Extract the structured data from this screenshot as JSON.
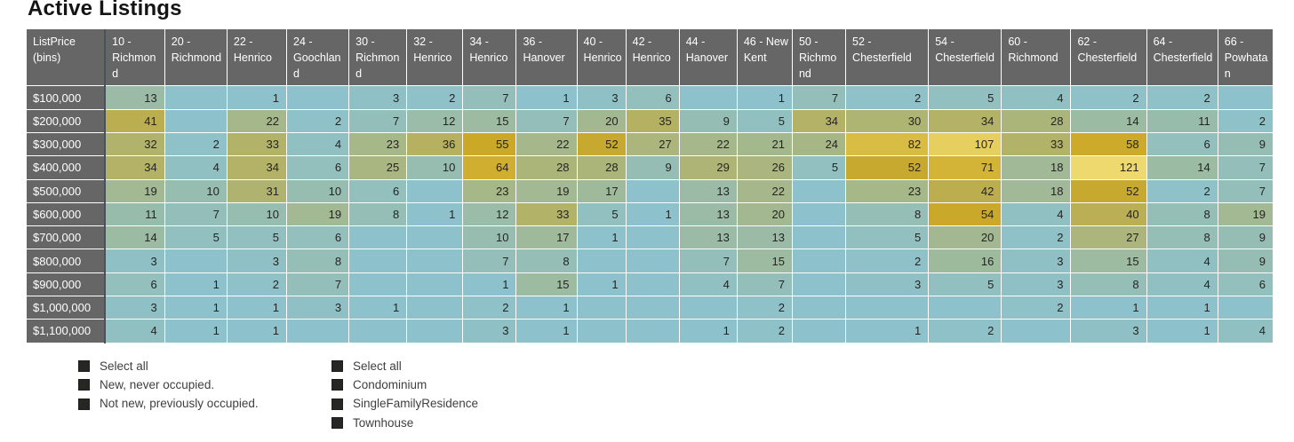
{
  "title": "Active Listings",
  "chart_data": {
    "type": "heatmap",
    "title": "Active Listings",
    "row_header": "ListPrice (bins)",
    "columns": [
      "10 - Richmond",
      "20 - Richmond",
      "22 - Henrico",
      "24 - Goochland",
      "30 - Richmond",
      "32 - Henrico",
      "34 - Henrico",
      "36 - Hanover",
      "40 - Henrico",
      "42 - Henrico",
      "44 - Hanover",
      "46 - New Kent",
      "50 - Richmond",
      "52 - Chesterfield",
      "54 - Chesterfield",
      "60 - Richmond",
      "62 - Chesterfield",
      "64 - Chesterfield",
      "66 - Powhatan"
    ],
    "rows": [
      "$100,000",
      "$200,000",
      "$300,000",
      "$400,000",
      "$500,000",
      "$600,000",
      "$700,000",
      "$800,000",
      "$900,000",
      "$1,000,000",
      "$1,100,000"
    ],
    "values": [
      [
        13,
        null,
        1,
        null,
        3,
        2,
        7,
        1,
        3,
        6,
        null,
        1,
        7,
        2,
        5,
        4,
        2,
        2,
        null
      ],
      [
        41,
        null,
        22,
        2,
        7,
        12,
        15,
        7,
        20,
        35,
        9,
        5,
        34,
        30,
        34,
        28,
        14,
        11,
        2
      ],
      [
        32,
        2,
        33,
        4,
        23,
        36,
        55,
        22,
        52,
        27,
        22,
        21,
        24,
        82,
        107,
        33,
        58,
        6,
        9
      ],
      [
        34,
        4,
        34,
        6,
        25,
        10,
        64,
        28,
        28,
        9,
        29,
        26,
        5,
        52,
        71,
        18,
        121,
        14,
        7
      ],
      [
        19,
        10,
        31,
        10,
        6,
        null,
        23,
        19,
        17,
        null,
        13,
        22,
        null,
        23,
        42,
        18,
        52,
        2,
        7
      ],
      [
        11,
        7,
        10,
        19,
        8,
        1,
        12,
        33,
        5,
        1,
        13,
        20,
        null,
        8,
        54,
        4,
        40,
        8,
        19
      ],
      [
        14,
        5,
        5,
        6,
        null,
        null,
        10,
        17,
        1,
        null,
        13,
        13,
        null,
        5,
        20,
        2,
        27,
        8,
        9
      ],
      [
        3,
        null,
        3,
        8,
        null,
        null,
        7,
        8,
        null,
        null,
        7,
        15,
        null,
        2,
        16,
        3,
        15,
        4,
        9
      ],
      [
        6,
        1,
        2,
        7,
        null,
        null,
        1,
        15,
        1,
        null,
        4,
        7,
        null,
        3,
        5,
        3,
        8,
        4,
        6
      ],
      [
        3,
        1,
        1,
        3,
        1,
        null,
        2,
        1,
        null,
        null,
        null,
        2,
        null,
        null,
        null,
        2,
        1,
        1,
        null
      ],
      [
        4,
        1,
        1,
        null,
        null,
        null,
        3,
        1,
        null,
        null,
        1,
        2,
        null,
        1,
        2,
        null,
        3,
        1,
        4
      ]
    ],
    "color_scale": {
      "min_value": 1,
      "mid_value": 55,
      "max_value": 121,
      "min_color": "#8DC1CB",
      "mid_color": "#CBA826",
      "max_color": "#EDD96E",
      "blank_color": "#8DC1CB"
    },
    "header_bg": "#666666",
    "header_text_color": "#FFFFFF"
  },
  "slicers": [
    {
      "items": [
        "Select all",
        "New, never occupied.",
        "Not new, previously occupied."
      ]
    },
    {
      "items": [
        "Select all",
        "Condominium",
        "SingleFamilyResidence",
        "Townhouse"
      ]
    }
  ]
}
